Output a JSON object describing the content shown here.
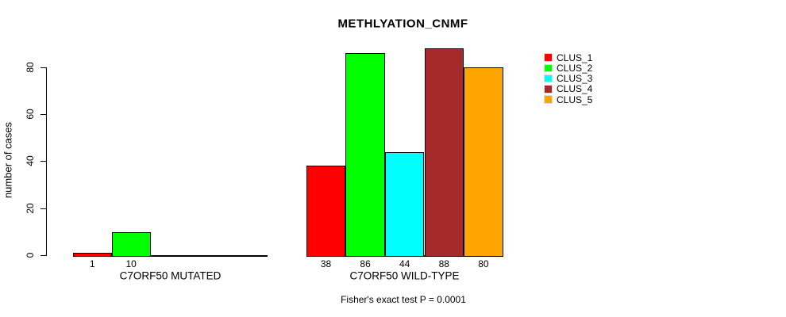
{
  "chart_data": {
    "type": "bar",
    "title": "METHLYATION_CNMF",
    "ylabel": "number of cases",
    "xlabel": "",
    "ylim": [
      0,
      80
    ],
    "yticks": [
      0,
      20,
      40,
      60,
      80
    ],
    "grid": false,
    "legend_position": "right-outside",
    "categories": [
      "CLUS_1",
      "CLUS_2",
      "CLUS_3",
      "CLUS_4",
      "CLUS_5"
    ],
    "series_colors": [
      "#FF0000",
      "#00FF00",
      "#00FFFF",
      "#A52A2A",
      "#FFA500"
    ],
    "groups": [
      {
        "label": "C7ORF50 MUTATED",
        "values": [
          1,
          10,
          0,
          0,
          0
        ],
        "bar_labels": [
          "1",
          "10",
          "",
          "",
          ""
        ]
      },
      {
        "label": "C7ORF50 WILD-TYPE",
        "values": [
          38,
          86,
          44,
          88,
          80
        ],
        "bar_labels": [
          "38",
          "86",
          "44",
          "88",
          "80"
        ]
      }
    ],
    "annotation": "Fisher's exact test P = 0.0001"
  },
  "legend": {
    "items": [
      {
        "label": "CLUS_1",
        "color": "#FF0000"
      },
      {
        "label": "CLUS_2",
        "color": "#00FF00"
      },
      {
        "label": "CLUS_3",
        "color": "#00FFFF"
      },
      {
        "label": "CLUS_4",
        "color": "#A52A2A"
      },
      {
        "label": "CLUS_5",
        "color": "#FFA500"
      }
    ]
  },
  "colors": {
    "axis": "#000000",
    "text": "#000000",
    "background": "#FFFFFF",
    "swatch_border": "#DDDDDD"
  }
}
